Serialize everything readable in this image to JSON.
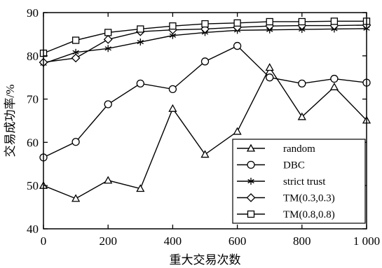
{
  "chart_data": {
    "type": "line",
    "xlabel": "重大交易次数",
    "ylabel": "交易成功率/%",
    "x": [
      0,
      100,
      200,
      300,
      400,
      500,
      600,
      700,
      800,
      900,
      1000
    ],
    "x_tick_labels": [
      "0",
      "200",
      "400",
      "600",
      "800",
      "1 000"
    ],
    "x_tick_values": [
      0,
      200,
      400,
      600,
      800,
      1000
    ],
    "y_ticks": [
      40,
      50,
      60,
      70,
      80,
      90
    ],
    "xlim": [
      0,
      1000
    ],
    "ylim": [
      40,
      90
    ],
    "grid": false,
    "legend_position": "bottom-right",
    "series": [
      {
        "name": "random",
        "marker": "triangle",
        "values": [
          50,
          47,
          51.2,
          49.3,
          67.8,
          57.2,
          62.5,
          77.3,
          65.9,
          72.8,
          65.1
        ]
      },
      {
        "name": "DBC",
        "marker": "circle",
        "values": [
          56.5,
          60.1,
          68.8,
          73.6,
          72.3,
          78.7,
          82.3,
          75.0,
          73.6,
          74.7,
          73.8
        ]
      },
      {
        "name": "strict trust",
        "marker": "asterisk",
        "values": [
          78.2,
          80.8,
          81.7,
          83.2,
          84.7,
          85.4,
          85.9,
          86.0,
          86.1,
          86.2,
          86.3
        ]
      },
      {
        "name": "TM(0.3,0.3)",
        "marker": "diamond",
        "values": [
          78.5,
          79.5,
          83.8,
          85.6,
          86.0,
          86.2,
          86.6,
          86.9,
          87.0,
          87.0,
          87.1
        ]
      },
      {
        "name": "TM(0.8,0.8)",
        "marker": "square",
        "values": [
          80.6,
          83.6,
          85.4,
          86.2,
          86.9,
          87.4,
          87.6,
          87.9,
          87.9,
          88.0,
          88.0
        ]
      }
    ]
  }
}
